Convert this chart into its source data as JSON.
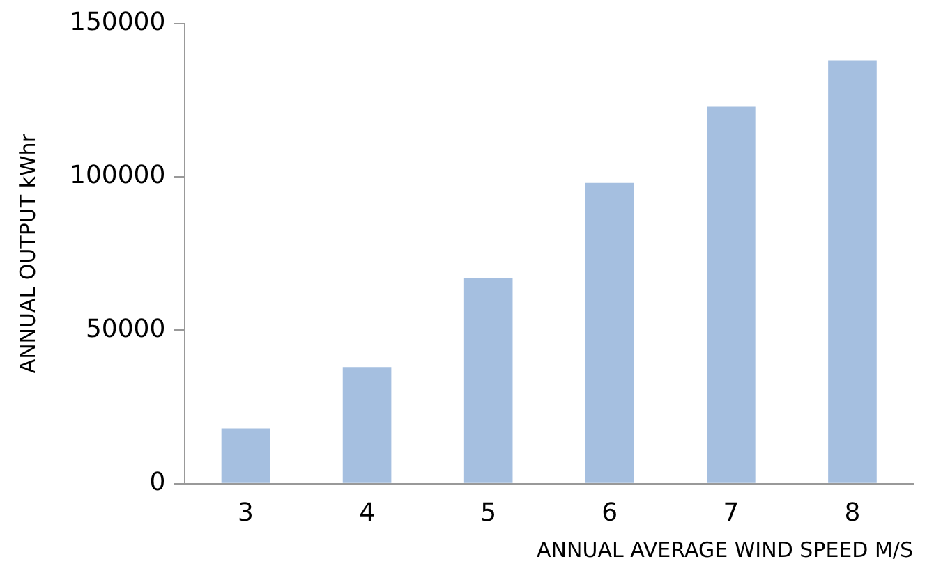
{
  "chart_data": {
    "type": "bar",
    "xlabel": "ANNUAL AVERAGE WIND SPEED M/S",
    "ylabel": "ANNUAL OUTPUT kWhr",
    "categories": [
      "3",
      "4",
      "5",
      "6",
      "7",
      "8"
    ],
    "values": [
      18000,
      38000,
      67000,
      98000,
      123000,
      138000
    ],
    "color": "#a5bfe0",
    "ylim": [
      0,
      150000
    ],
    "yticks": [
      0,
      50000,
      100000,
      150000
    ],
    "grid": false,
    "legend": false
  }
}
